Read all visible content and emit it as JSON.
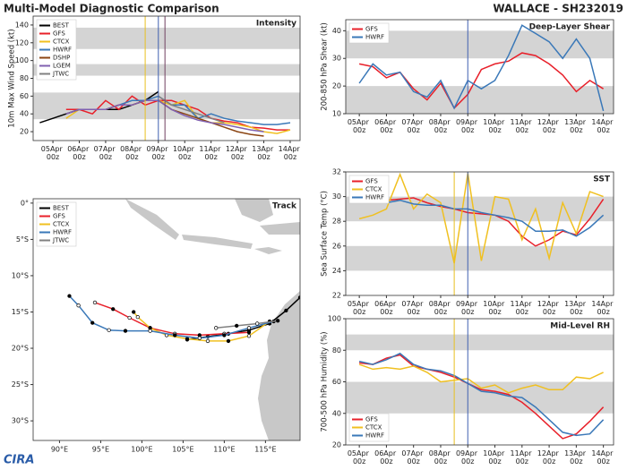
{
  "header": {
    "title": "Multi-Model Diagnostic Comparison",
    "storm": "WALLACE - SH232019"
  },
  "logo": "CIRA",
  "chart_data": [
    {
      "type": "line",
      "title": "Intensity",
      "y_label": "10m Max Wind Speed (kt)",
      "x": [
        "04Apr 12z",
        "05Apr 00z",
        "05Apr 12z",
        "06Apr 00z",
        "06Apr 12z",
        "07Apr 00z",
        "07Apr 12z",
        "08Apr 00z",
        "08Apr 12z",
        "09Apr 00z",
        "09Apr 12z",
        "10Apr 00z",
        "10Apr 12z",
        "11Apr 00z",
        "11Apr 12z",
        "12Apr 00z",
        "12Apr 12z",
        "13Apr 00z",
        "13Apr 12z",
        "14Apr 00z"
      ],
      "series": [
        {
          "name": "BEST",
          "color": "#000000",
          "values": [
            30,
            35,
            40,
            45,
            45,
            45,
            45,
            50,
            55,
            65,
            null,
            null,
            null,
            null,
            null,
            null,
            null,
            null,
            null,
            null
          ]
        },
        {
          "name": "GFS",
          "color": "#e8202a",
          "values": [
            null,
            null,
            45,
            45,
            40,
            55,
            45,
            60,
            50,
            55,
            55,
            50,
            45,
            35,
            32,
            30,
            25,
            24,
            22,
            22
          ]
        },
        {
          "name": "CTCX",
          "color": "#f0c020",
          "values": [
            null,
            null,
            35,
            45,
            45,
            45,
            50,
            50,
            55,
            55,
            50,
            55,
            35,
            30,
            30,
            28,
            25,
            20,
            18,
            22
          ]
        },
        {
          "name": "HWRF",
          "color": "#3a78b8",
          "values": [
            null,
            null,
            40,
            45,
            45,
            45,
            50,
            55,
            55,
            60,
            50,
            50,
            35,
            40,
            35,
            32,
            30,
            28,
            28,
            30
          ]
        },
        {
          "name": "DSHP",
          "color": "#8b4513",
          "values": [
            null,
            null,
            40,
            45,
            45,
            45,
            50,
            50,
            55,
            55,
            45,
            40,
            35,
            30,
            25,
            20,
            17,
            15,
            null,
            null
          ]
        },
        {
          "name": "LGEM",
          "color": "#8060b0",
          "values": [
            null,
            null,
            40,
            45,
            45,
            45,
            50,
            50,
            55,
            55,
            45,
            38,
            33,
            30,
            28,
            25,
            22,
            20,
            null,
            null
          ]
        },
        {
          "name": "JTWC",
          "color": "#808080",
          "values": [
            null,
            null,
            null,
            null,
            null,
            null,
            null,
            null,
            null,
            60,
            50,
            45,
            40,
            35,
            30,
            null,
            null,
            null,
            null,
            null
          ]
        }
      ],
      "xlim": [
        "04Apr 06z",
        "14Apr 09z"
      ],
      "xticks": [
        "05Apr 00z",
        "06Apr 00z",
        "07Apr 00z",
        "08Apr 00z",
        "09Apr 00z",
        "10Apr 00z",
        "11Apr 00z",
        "12Apr 00z",
        "13Apr 00z",
        "14Apr 00z"
      ],
      "ylim": [
        10,
        150
      ],
      "yticks": [
        20,
        40,
        60,
        80,
        100,
        120,
        140
      ],
      "bands": [
        [
          34,
          64
        ],
        [
          83,
          96
        ],
        [
          113,
          137
        ]
      ],
      "vlines": [
        {
          "x": "08Apr 12z",
          "color": "#e8c020"
        },
        {
          "x": "09Apr 00z",
          "color": "#4060b0"
        },
        {
          "x": "09Apr 06z",
          "color": "#704060"
        }
      ],
      "legend": "upper left"
    },
    {
      "type": "map",
      "title": "Track",
      "series": [
        {
          "name": "BEST",
          "color": "#000000",
          "lon": [
            119.2,
            117.5,
            115.5,
            113,
            110.5,
            108,
            105.5
          ],
          "lat": [
            -13,
            -14.8,
            -16.6,
            -17.5,
            -18,
            -18.4,
            -18.8
          ]
        },
        {
          "name": "GFS",
          "color": "#e8202a",
          "lon": [
            113,
            110,
            107,
            104,
            101,
            98.5,
            96.5,
            94.3
          ],
          "lat": [
            -17.8,
            -18,
            -18.2,
            -18,
            -17.2,
            -15.8,
            -14.6,
            -13.7
          ]
        },
        {
          "name": "CTCX",
          "color": "#f0c020",
          "lon": [
            115.5,
            113,
            110.5,
            108,
            105.5,
            103,
            101,
            99.5,
            99
          ],
          "lat": [
            -16.3,
            -18.3,
            -19,
            -19,
            -18.7,
            -18.2,
            -17.2,
            -15.7,
            -15
          ]
        },
        {
          "name": "HWRF",
          "color": "#3a78b8",
          "lon": [
            116,
            113,
            110,
            107,
            104,
            101,
            98,
            96,
            94,
            92.3,
            91.2
          ],
          "lat": [
            -16.3,
            -17.2,
            -18.2,
            -18.6,
            -18.2,
            -17.6,
            -17.6,
            -17.5,
            -16.5,
            -14.1,
            -12.8
          ]
        },
        {
          "name": "JTWC",
          "color": "#808080",
          "lon": [
            116.5,
            114,
            111.5,
            109
          ],
          "lat": [
            -16.2,
            -16.6,
            -16.9,
            -17.2
          ]
        }
      ],
      "xlim": [
        86.8,
        119.2
      ],
      "xticks": [
        {
          "value": 90,
          "label": "90°E"
        },
        {
          "value": 95,
          "label": "95°E"
        },
        {
          "value": 100,
          "label": "100°E"
        },
        {
          "value": 105,
          "label": "105°E"
        },
        {
          "value": 110,
          "label": "110°E"
        },
        {
          "value": 115,
          "label": "115°E"
        }
      ],
      "ylim": [
        -32.7,
        0.6
      ],
      "yticks": [
        {
          "value": 0,
          "label": "0°"
        },
        {
          "value": -5,
          "label": "5°S"
        },
        {
          "value": -10,
          "label": "10°S"
        },
        {
          "value": -15,
          "label": "15°S"
        },
        {
          "value": -20,
          "label": "20°S"
        },
        {
          "value": -25,
          "label": "25°S"
        },
        {
          "value": -30,
          "label": "30°S"
        }
      ],
      "legend": "upper left"
    },
    {
      "type": "line",
      "title": "Deep-Layer Shear",
      "y_label": "200-850 hPa Shear (kt)",
      "x": [
        "05Apr 00z",
        "05Apr 12z",
        "06Apr 00z",
        "06Apr 12z",
        "07Apr 00z",
        "07Apr 12z",
        "08Apr 00z",
        "08Apr 12z",
        "09Apr 00z",
        "09Apr 12z",
        "10Apr 00z",
        "10Apr 12z",
        "11Apr 00z",
        "11Apr 12z",
        "12Apr 00z",
        "12Apr 12z",
        "13Apr 00z",
        "13Apr 12z",
        "14Apr 00z"
      ],
      "series": [
        {
          "name": "GFS",
          "color": "#e8202a",
          "values": [
            28,
            27,
            23,
            25,
            19,
            15,
            21,
            12,
            17,
            26,
            28,
            29,
            32,
            31,
            28,
            24,
            18,
            22,
            19
          ]
        },
        {
          "name": "HWRF",
          "color": "#3a78b8",
          "values": [
            21,
            28,
            24,
            25,
            18,
            16,
            22,
            12,
            22,
            19,
            22,
            31,
            42,
            39,
            36,
            30,
            37,
            30,
            11
          ]
        }
      ],
      "xlim": [
        "04Apr 12z",
        "14Apr 09z"
      ],
      "xticks": [
        "05Apr 00z",
        "06Apr 00z",
        "07Apr 00z",
        "08Apr 00z",
        "09Apr 00z",
        "10Apr 00z",
        "11Apr 00z",
        "12Apr 00z",
        "13Apr 00z",
        "14Apr 00z"
      ],
      "ylim": [
        10,
        44
      ],
      "yticks": [
        10,
        20,
        30,
        40
      ],
      "bands": [
        [
          10,
          20
        ],
        [
          30,
          40
        ]
      ],
      "vlines": [
        {
          "x": "09Apr 00z",
          "color": "#4060b0"
        }
      ],
      "legend": "upper left"
    },
    {
      "type": "line",
      "title": "SST",
      "y_label": "Sea Surface Temp (°C)",
      "x": [
        "05Apr 00z",
        "05Apr 12z",
        "06Apr 00z",
        "06Apr 12z",
        "07Apr 00z",
        "07Apr 12z",
        "08Apr 00z",
        "08Apr 12z",
        "09Apr 00z",
        "09Apr 12z",
        "10Apr 00z",
        "10Apr 12z",
        "11Apr 00z",
        "11Apr 12z",
        "12Apr 00z",
        "12Apr 12z",
        "13Apr 00z",
        "13Apr 12z",
        "14Apr 00z"
      ],
      "series": [
        {
          "name": "GFS",
          "color": "#e8202a",
          "values": [
            29.8,
            30,
            29.7,
            29.8,
            29.9,
            29.5,
            29.2,
            29,
            28.7,
            28.6,
            28.5,
            28,
            26.8,
            26,
            26.5,
            27.2,
            26.9,
            28.2,
            29.8
          ]
        },
        {
          "name": "CTCX",
          "color": "#f0c020",
          "values": [
            28.2,
            28.5,
            29,
            31.8,
            29,
            30.2,
            29.5,
            24.6,
            31.9,
            24.8,
            30,
            29.8,
            26.5,
            29,
            25,
            29.5,
            27,
            30.4,
            30
          ]
        },
        {
          "name": "HWRF",
          "color": "#3a78b8",
          "values": [
            29.9,
            30.3,
            29.5,
            29.7,
            29.4,
            29.3,
            29.3,
            29,
            29,
            28.7,
            28.5,
            28.3,
            28,
            27.2,
            27.2,
            27.3,
            26.8,
            27.5,
            28.5
          ]
        }
      ],
      "xlim": [
        "04Apr 12z",
        "14Apr 09z"
      ],
      "xticks": [
        "05Apr 00z",
        "06Apr 00z",
        "07Apr 00z",
        "08Apr 00z",
        "09Apr 00z",
        "10Apr 00z",
        "11Apr 00z",
        "12Apr 00z",
        "13Apr 00z",
        "14Apr 00z"
      ],
      "ylim": [
        22,
        32
      ],
      "yticks": [
        22,
        24,
        26,
        28,
        30,
        32
      ],
      "bands": [
        [
          24,
          26
        ],
        [
          28,
          30
        ]
      ],
      "vlines": [
        {
          "x": "08Apr 12z",
          "color": "#e8c020"
        },
        {
          "x": "09Apr 00z",
          "color": "#4060b0"
        }
      ],
      "legend": "upper left"
    },
    {
      "type": "line",
      "title": "Mid-Level RH",
      "y_label": "700-500 hPa Humidity (%)",
      "x": [
        "05Apr 00z",
        "05Apr 12z",
        "06Apr 00z",
        "06Apr 12z",
        "07Apr 00z",
        "07Apr 12z",
        "08Apr 00z",
        "08Apr 12z",
        "09Apr 00z",
        "09Apr 12z",
        "10Apr 00z",
        "10Apr 12z",
        "11Apr 00z",
        "11Apr 12z",
        "12Apr 00z",
        "12Apr 12z",
        "13Apr 00z",
        "13Apr 12z",
        "14Apr 00z"
      ],
      "series": [
        {
          "name": "GFS",
          "color": "#e8202a",
          "values": [
            72,
            71,
            75,
            77,
            70,
            68,
            66,
            63,
            59,
            55,
            54,
            52,
            47,
            40,
            32,
            24,
            27,
            35,
            44
          ]
        },
        {
          "name": "CTCX",
          "color": "#f0c020",
          "values": [
            71,
            68,
            69,
            68,
            70,
            66,
            60,
            61,
            62,
            56,
            58,
            53,
            56,
            58,
            55,
            55,
            63,
            62,
            66
          ]
        },
        {
          "name": "HWRF",
          "color": "#3a78b8",
          "values": [
            73,
            71,
            74,
            78,
            71,
            68,
            67,
            64,
            59,
            54,
            53,
            51,
            50,
            44,
            36,
            28,
            26,
            27,
            36
          ]
        }
      ],
      "xlim": [
        "04Apr 12z",
        "14Apr 09z"
      ],
      "xticks": [
        "05Apr 00z",
        "06Apr 00z",
        "07Apr 00z",
        "08Apr 00z",
        "09Apr 00z",
        "10Apr 00z",
        "11Apr 00z",
        "12Apr 00z",
        "13Apr 00z",
        "14Apr 00z"
      ],
      "ylim": [
        20,
        100
      ],
      "yticks": [
        20,
        40,
        60,
        80,
        100
      ],
      "bands": [
        [
          40,
          60
        ],
        [
          80,
          90
        ]
      ],
      "vlines": [
        {
          "x": "08Apr 12z",
          "color": "#e8c020"
        },
        {
          "x": "09Apr 00z",
          "color": "#4060b0"
        }
      ],
      "legend": "lower left"
    }
  ]
}
